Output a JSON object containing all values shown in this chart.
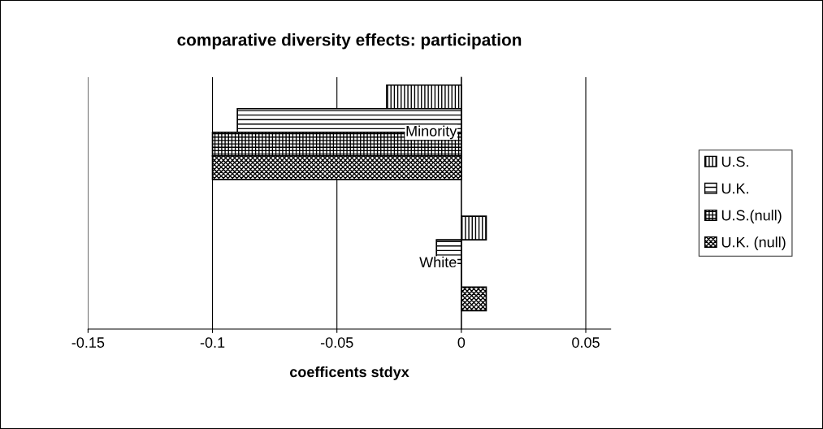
{
  "chart_data": {
    "type": "bar",
    "orientation": "horizontal",
    "title": "comparative diversity effects: participation",
    "xlabel": "coefficents stdyx",
    "categories": [
      "Minority",
      "White"
    ],
    "series": [
      {
        "name": "U.S.",
        "color": "#000000",
        "values": [
          -0.03,
          0.01
        ]
      },
      {
        "name": "U.K.",
        "color": "#000000",
        "values": [
          -0.09,
          -0.01
        ]
      },
      {
        "name": "U.S.(null)",
        "color": "#000000",
        "values": [
          -0.1,
          0
        ]
      },
      {
        "name": "U.K. (null)",
        "color": "#000000",
        "values": [
          -0.1,
          0.01
        ]
      }
    ],
    "xlim": [
      -0.15,
      0.06
    ],
    "xticks": [
      -0.15,
      -0.1,
      -0.05,
      0,
      0.05
    ],
    "grid": "x",
    "legend": "right"
  }
}
